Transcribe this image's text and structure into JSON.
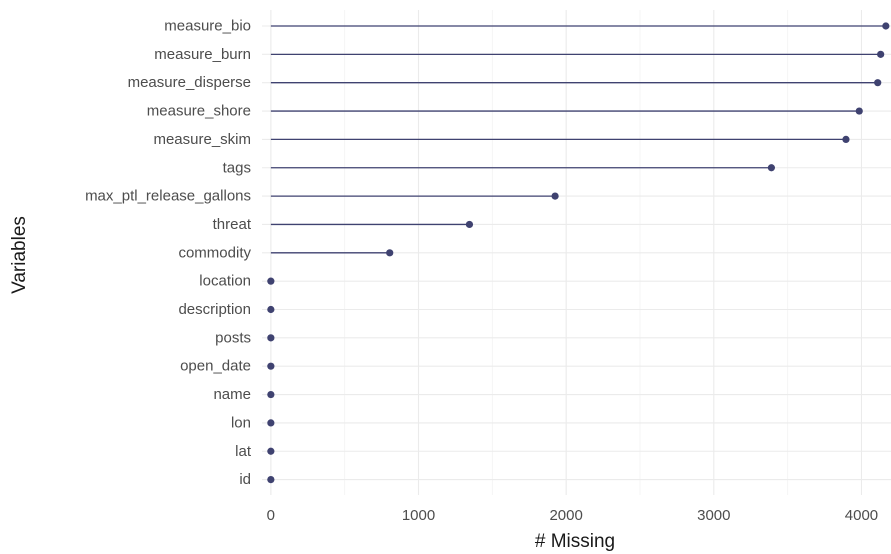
{
  "chart_data": {
    "type": "lollipop",
    "title": "",
    "xlabel": "# Missing",
    "ylabel": "Variables",
    "xlim": [
      -60,
      4200
    ],
    "xticks": [
      0,
      1000,
      2000,
      3000,
      4000
    ],
    "xtick_labels": [
      "0",
      "1000",
      "2000",
      "3000",
      "4000"
    ],
    "grid": true,
    "legend": "none",
    "color": "#3f4270",
    "categories": [
      "measure_bio",
      "measure_burn",
      "measure_disperse",
      "measure_shore",
      "measure_skim",
      "tags",
      "max_ptl_release_gallons",
      "threat",
      "commodity",
      "location",
      "description",
      "posts",
      "open_date",
      "name",
      "lon",
      "lat",
      "id"
    ],
    "values": [
      4165,
      4130,
      4110,
      3985,
      3895,
      3390,
      1925,
      1345,
      805,
      0,
      0,
      0,
      0,
      0,
      0,
      0,
      0
    ]
  }
}
